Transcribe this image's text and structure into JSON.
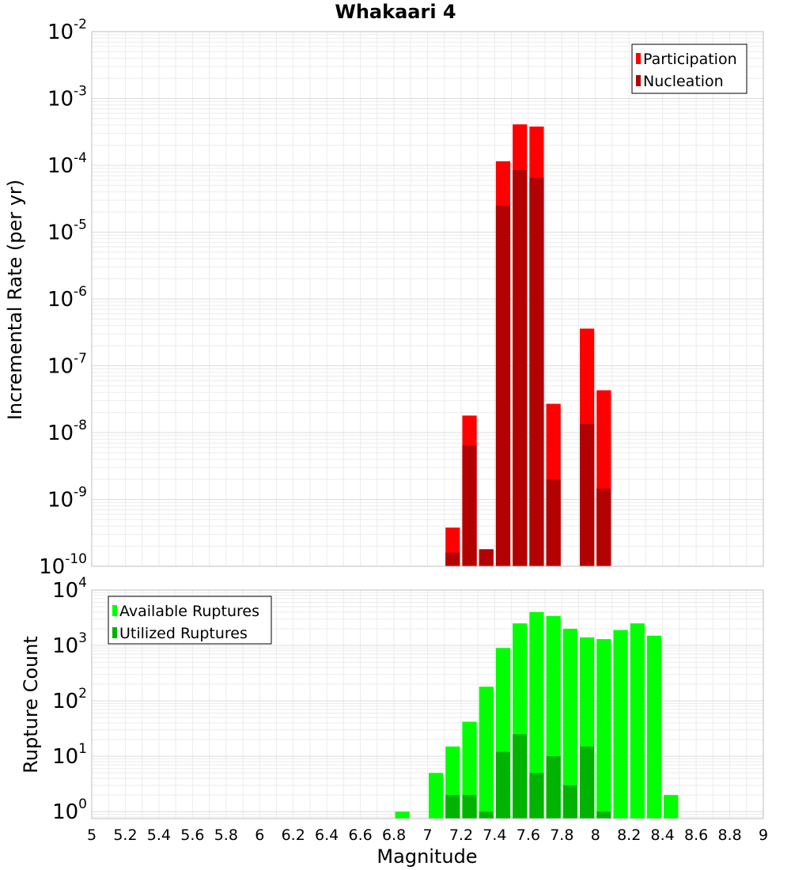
{
  "chart_data": [
    {
      "type": "bar",
      "title": "Whakaari 4",
      "ylabel": "Incremental Rate (per yr)",
      "xlabel": "",
      "y_scale": "log",
      "ylim": [
        1e-10,
        0.01
      ],
      "y_tick_exponents": [
        "-10",
        "-9",
        "-8",
        "-7",
        "-6",
        "-5",
        "-4",
        "-3",
        "-2"
      ],
      "y_tick_base": "10",
      "xlim": [
        5,
        9
      ],
      "bin_width": 0.1,
      "grid": true,
      "legend_position": "top-right",
      "overlay": true,
      "x": [
        7.15,
        7.25,
        7.35,
        7.45,
        7.55,
        7.65,
        7.75,
        7.95,
        8.05
      ],
      "series": [
        {
          "name": "Participation",
          "color": "#ff0000",
          "values": [
            3.8e-10,
            1.8e-08,
            1.8e-10,
            0.000115,
            0.00041,
            0.00038,
            2.7e-08,
            3.6e-07,
            4.3e-08
          ]
        },
        {
          "name": "Nucleation",
          "color": "#b30000",
          "values": [
            1.6e-10,
            6.5e-09,
            1.8e-10,
            2.5e-05,
            8.5e-05,
            6.5e-05,
            2e-09,
            1.35e-08,
            1.45e-09
          ]
        }
      ]
    },
    {
      "type": "bar",
      "title": "",
      "ylabel": "Rupture Count",
      "xlabel": "Magnitude",
      "y_scale": "log",
      "ylim": [
        0.75,
        10000
      ],
      "y_tick_exponents": [
        "0",
        "1",
        "2",
        "3",
        "4"
      ],
      "y_tick_base": "10",
      "xlim": [
        5,
        9
      ],
      "x_ticks": [
        "5",
        "5.2",
        "5.4",
        "5.6",
        "5.8",
        "6",
        "6.2",
        "6.4",
        "6.6",
        "6.8",
        "7",
        "7.2",
        "7.4",
        "7.6",
        "7.8",
        "8",
        "8.2",
        "8.4",
        "8.6",
        "8.8",
        "9"
      ],
      "bin_width": 0.1,
      "grid": true,
      "legend_position": "top-left",
      "overlay": true,
      "x": [
        6.85,
        7.05,
        7.15,
        7.25,
        7.35,
        7.45,
        7.55,
        7.65,
        7.75,
        7.85,
        7.95,
        8.05,
        8.15,
        8.25,
        8.35,
        8.45
      ],
      "series": [
        {
          "name": "Available Ruptures",
          "color": "#00ff00",
          "values": [
            1,
            5,
            15,
            42,
            180,
            900,
            2500,
            4000,
            3400,
            2000,
            1400,
            1300,
            1900,
            2500,
            1500,
            2
          ]
        },
        {
          "name": "Utilized Ruptures",
          "color": "#00b300",
          "values": [
            0,
            0,
            2,
            2,
            1,
            12,
            25,
            5,
            10,
            3,
            15,
            1,
            0,
            0,
            0,
            0
          ]
        }
      ]
    }
  ]
}
